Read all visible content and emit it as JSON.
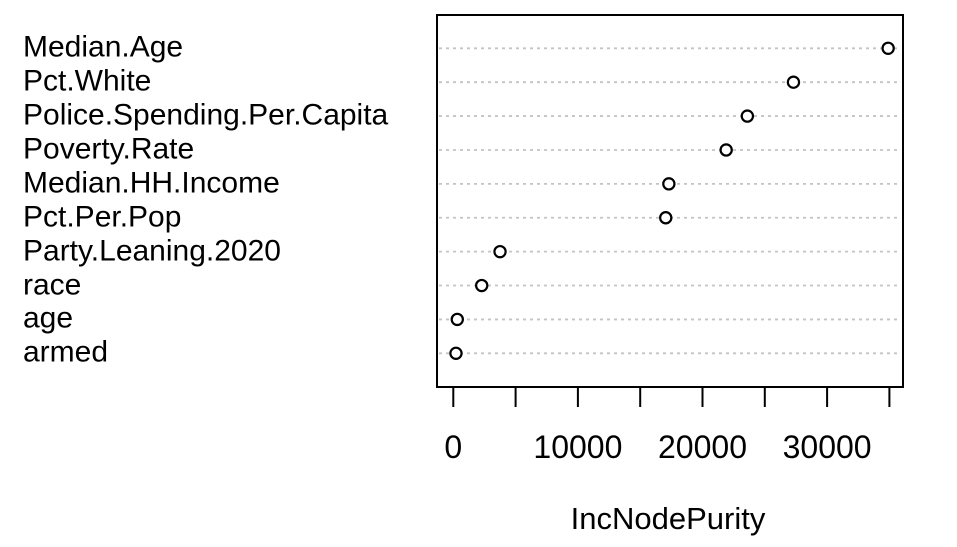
{
  "figure": {
    "background_color": "#ffffff",
    "text_color": "#000000"
  },
  "chart_data": {
    "type": "scatter",
    "variant": "dot-chart",
    "title": "",
    "xlabel": "IncNodePurity",
    "ylabel": "",
    "categories": [
      "Median.Age",
      "Pct.White",
      "Police.Spending.Per.Capita",
      "Poverty.Rate",
      "Median.HH.Income",
      "Pct.Per.Pop",
      "Party.Leaning.2020",
      "race",
      "age",
      "armed"
    ],
    "values": [
      34900,
      27300,
      23600,
      21900,
      17300,
      17050,
      3750,
      2280,
      320,
      215
    ],
    "x_ticks": [
      0,
      5000,
      10000,
      15000,
      20000,
      25000,
      30000,
      35000
    ],
    "x_tick_labels": [
      "0",
      "",
      "10000",
      "",
      "20000",
      "",
      "30000",
      ""
    ],
    "xlim": [
      -1300,
      36400
    ],
    "grid": {
      "horizontal": true,
      "line_style": "dashed",
      "color": "#c4c4c4"
    },
    "point": {
      "shape": "open-circle",
      "stroke_color": "#000000",
      "fill_color": "#ffffff"
    },
    "legend": null
  }
}
